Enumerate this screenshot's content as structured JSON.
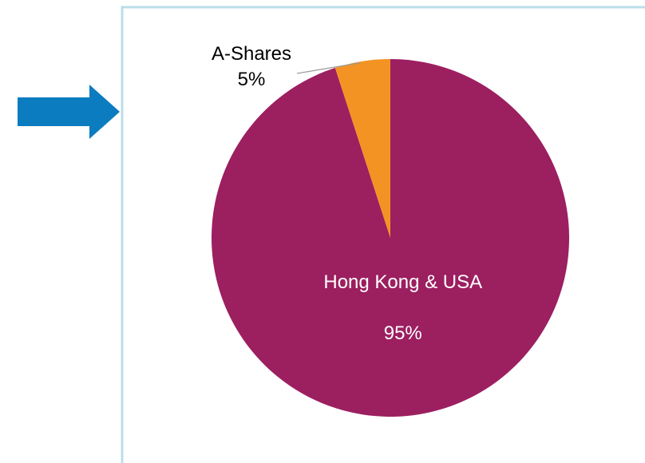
{
  "chart_data": {
    "type": "pie",
    "categories": [
      "Hong Kong & USA",
      "A-Shares"
    ],
    "values": [
      95,
      5
    ],
    "value_labels": [
      "95%",
      "5%"
    ],
    "colors": [
      "#9c1f60",
      "#f39323"
    ]
  }
}
